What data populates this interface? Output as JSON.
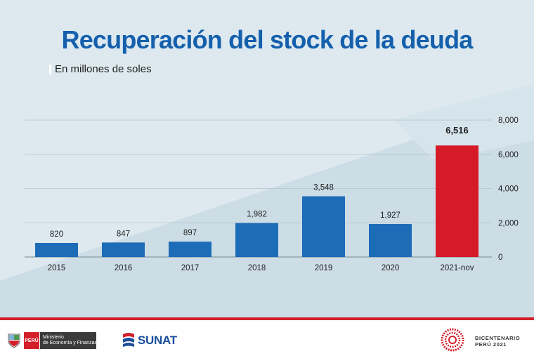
{
  "title": "Recuperación del stock de la deuda",
  "subtitle": "En millones de soles",
  "chart_data": {
    "type": "bar",
    "title": "Recuperación del stock de la deuda",
    "subtitle": "En millones de soles",
    "categories": [
      "2015",
      "2016",
      "2017",
      "2018",
      "2019",
      "2020",
      "2021-nov"
    ],
    "values": [
      820,
      847,
      897,
      1982,
      3548,
      1927,
      6516
    ],
    "value_labels": [
      "820",
      "847",
      "897",
      "1,982",
      "3,548",
      "1,927",
      "6,516"
    ],
    "y_ticks": [
      0,
      2000,
      4000,
      6000,
      8000
    ],
    "y_tick_labels": [
      "0",
      "2,000",
      "4,000",
      "6,000",
      "8,000"
    ],
    "ylim": [
      0,
      8000
    ],
    "y_axis_side": "right",
    "grid": true,
    "colors": {
      "default": "#1c6cb8",
      "highlight": "#d51a28"
    },
    "highlight_index": 6
  },
  "footer": {
    "peru_label": "PERÚ",
    "ministry_line1": "Ministerio",
    "ministry_line2": "de Economía y Finanzas",
    "sunat_label": "SUNAT",
    "bicentenario_line1": "BICENTENARIO",
    "bicentenario_line2": "PERÚ 2021",
    "icons": [
      "peru-coat-of-arms-icon",
      "sunat-logo-icon",
      "bicentenario-logo-icon"
    ]
  }
}
